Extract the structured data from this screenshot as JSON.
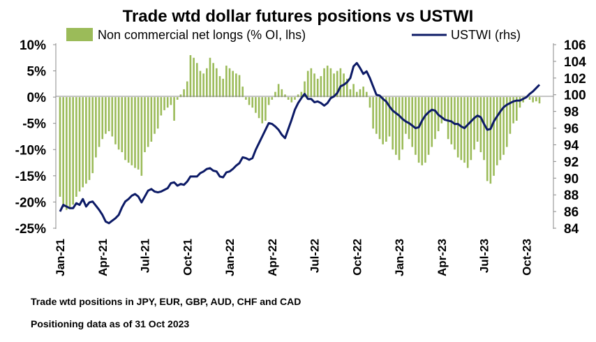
{
  "chart_data": {
    "type": "bar+line",
    "title": "Trade wtd dollar futures positions  vs USTWI",
    "legend": [
      {
        "name": "Non commercial net longs (% OI, lhs)",
        "kind": "bar",
        "color": "#9bbb59"
      },
      {
        "name": "USTWI (rhs)",
        "kind": "line",
        "color": "#0c1a66"
      }
    ],
    "left_axis": {
      "min": -25,
      "max": 10,
      "step": 5,
      "tick_labels": [
        "10%",
        "5%",
        "0%",
        "-5%",
        "-10%",
        "-15%",
        "-20%",
        "-25%"
      ]
    },
    "right_axis": {
      "min": 84,
      "max": 106,
      "step": 2,
      "tick_labels": [
        "106",
        "104",
        "102",
        "100",
        "98",
        "96",
        "94",
        "92",
        "90",
        "88",
        "86",
        "84"
      ]
    },
    "x_labels": [
      "Jan-21",
      "Apr-21",
      "Jul-21",
      "Oct-21",
      "Jan-22",
      "Apr-22",
      "Jul-22",
      "Oct-22",
      "Jan-23",
      "Apr-23",
      "Jul-23",
      "Oct-23"
    ],
    "x_label_weeks": [
      0,
      13,
      26,
      39,
      52,
      65,
      78,
      91,
      104,
      117,
      130,
      143
    ],
    "series": [
      {
        "name": "Non commercial net longs (% OI, lhs)",
        "values": [
          -19,
          -21,
          -21.5,
          -21.3,
          -20.5,
          -19,
          -18,
          -17.2,
          -16.5,
          -15.8,
          -14.5,
          -11.5,
          -9.5,
          -8,
          -7,
          -6.5,
          -7.5,
          -9,
          -10,
          -10.5,
          -12,
          -12.5,
          -13,
          -13.5,
          -13.8,
          -15,
          -10.5,
          -9.5,
          -8.5,
          -7,
          -6,
          -3.5,
          -2.5,
          -2,
          -1.5,
          -4.5,
          -0.5,
          0.5,
          1.5,
          3,
          8,
          7.5,
          6.5,
          5,
          4.5,
          5.5,
          7.5,
          6.5,
          5.5,
          4,
          3.5,
          6,
          5.5,
          5,
          4.5,
          4.2,
          2,
          -0.5,
          -1.5,
          -2,
          -3,
          -4,
          -5,
          -4.5,
          -1.5,
          -0.5,
          1,
          2.5,
          1.5,
          0.5,
          -0.5,
          -1,
          -0.5,
          0.5,
          1,
          3,
          5,
          5.5,
          4.5,
          3.5,
          4,
          5.5,
          6,
          5.5,
          4.5,
          5,
          5.5,
          4.5,
          3.5,
          1.5,
          2.5,
          1,
          1.5,
          2,
          1,
          -2,
          -6,
          -7,
          -8,
          -9,
          -8.5,
          -7.5,
          -10,
          -11,
          -12,
          -10,
          -7,
          -8,
          -9.5,
          -11,
          -12.5,
          -13,
          -12.5,
          -11,
          -9.5,
          -8,
          -6.5,
          -5,
          -4.5,
          -8,
          -9,
          -10,
          -11.5,
          -12,
          -12.5,
          -13.5,
          -12,
          -10,
          -8.5,
          -10.5,
          -12,
          -16,
          -16.5,
          -15,
          -13,
          -12,
          -11,
          -9.5,
          -7,
          -5,
          -4.5,
          -2,
          -1,
          0,
          -0.5,
          -1,
          -0.8,
          -1.2
        ],
        "color": "#9bbb59"
      },
      {
        "name": "USTWI (rhs)",
        "values": [
          86,
          86.8,
          86.6,
          86.4,
          86.4,
          87,
          86.8,
          87.5,
          86.6,
          87.1,
          87.2,
          86.7,
          86.2,
          85.6,
          84.8,
          84.6,
          84.9,
          85.2,
          85.6,
          86.5,
          87.2,
          87.5,
          87.9,
          88.1,
          87.8,
          87.1,
          87.8,
          88.5,
          88.7,
          88.4,
          88.3,
          88.4,
          88.6,
          88.8,
          89.4,
          89.5,
          89.1,
          89.3,
          89.2,
          89.6,
          90.2,
          90.2,
          90.2,
          90.6,
          90.8,
          91.1,
          91.2,
          90.9,
          90.8,
          90.2,
          90.1,
          90.7,
          90.8,
          91.1,
          91.5,
          91.8,
          92.5,
          92.4,
          92.2,
          92.4,
          93.4,
          94.2,
          95,
          95.8,
          96.6,
          96.5,
          96.2,
          95.8,
          95.2,
          94.8,
          95.9,
          97,
          98.2,
          99,
          99.6,
          100.1,
          99.5,
          99.5,
          99.1,
          99.2,
          99,
          98.7,
          99,
          99.6,
          99.8,
          100.2,
          101,
          101.2,
          101.5,
          102,
          103.4,
          103.8,
          103.2,
          102.5,
          102.8,
          102,
          101,
          100,
          99.9,
          99.5,
          99.2,
          98.6,
          98.1,
          97.8,
          97.5,
          97.1,
          96.8,
          96.6,
          96.3,
          96,
          96.1,
          96.9,
          97.5,
          97.9,
          98.2,
          98.1,
          97.6,
          97.3,
          97,
          96.9,
          96.8,
          96.5,
          96.5,
          96.2,
          96,
          96.4,
          96.8,
          97.2,
          97.5,
          97.3,
          96.5,
          95.8,
          95.9,
          96.8,
          97.4,
          98,
          98.5,
          98.8,
          99,
          99.2,
          99.3,
          99.3,
          99.5,
          99.7,
          100.1,
          100.4,
          100.8,
          101.2
        ],
        "color": "#0c1a66"
      }
    ],
    "notes": [
      "Trade wtd positions in JPY, EUR, GBP, AUD, CHF and CAD",
      "Positioning data as of 31 Oct 2023"
    ]
  }
}
